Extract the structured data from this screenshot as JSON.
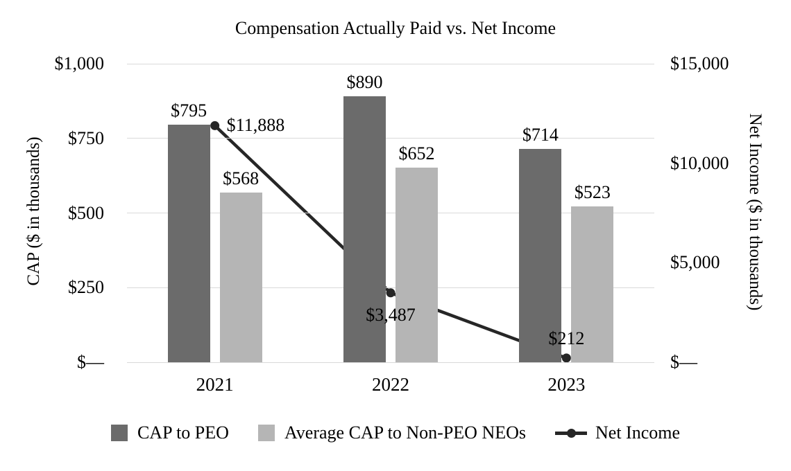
{
  "chart_data": {
    "type": "combo",
    "title": "Compensation Actually Paid vs. Net Income",
    "categories": [
      "2021",
      "2022",
      "2023"
    ],
    "series": [
      {
        "name": "CAP to PEO",
        "type": "bar",
        "axis": "left",
        "color": "#6b6b6b",
        "values": [
          795,
          890,
          714
        ],
        "labels": [
          "$795",
          "$890",
          "$714"
        ]
      },
      {
        "name": "Average CAP to Non-PEO NEOs",
        "type": "bar",
        "axis": "left",
        "color": "#b5b5b5",
        "values": [
          568,
          652,
          523
        ],
        "labels": [
          "$568",
          "$652",
          "$523"
        ]
      },
      {
        "name": "Net Income",
        "type": "line",
        "axis": "right",
        "color": "#262626",
        "values": [
          11888,
          3487,
          212
        ],
        "labels": [
          "$11,888",
          "$3,487",
          "$212"
        ],
        "label_positions": [
          "right",
          "below",
          "above"
        ]
      }
    ],
    "left_axis": {
      "title": "CAP ($ in thousands)",
      "min": 0,
      "max": 1000,
      "ticks": [
        {
          "value": 0,
          "label": "$—"
        },
        {
          "value": 250,
          "label": "$250"
        },
        {
          "value": 500,
          "label": "$500"
        },
        {
          "value": 750,
          "label": "$750"
        },
        {
          "value": 1000,
          "label": "$1,000"
        }
      ]
    },
    "right_axis": {
      "title": "Net Income ($ in thousands)",
      "min": 0,
      "max": 15000,
      "ticks": [
        {
          "value": 0,
          "label": "$—"
        },
        {
          "value": 5000,
          "label": "$5,000"
        },
        {
          "value": 10000,
          "label": "$10,000"
        },
        {
          "value": 15000,
          "label": "$15,000"
        }
      ]
    },
    "grid": "horizontal, at left-axis ticks",
    "legend_position": "bottom",
    "colors": {
      "background": "#ffffff",
      "gridline": "#d9d9d9",
      "text": "#000000"
    }
  }
}
